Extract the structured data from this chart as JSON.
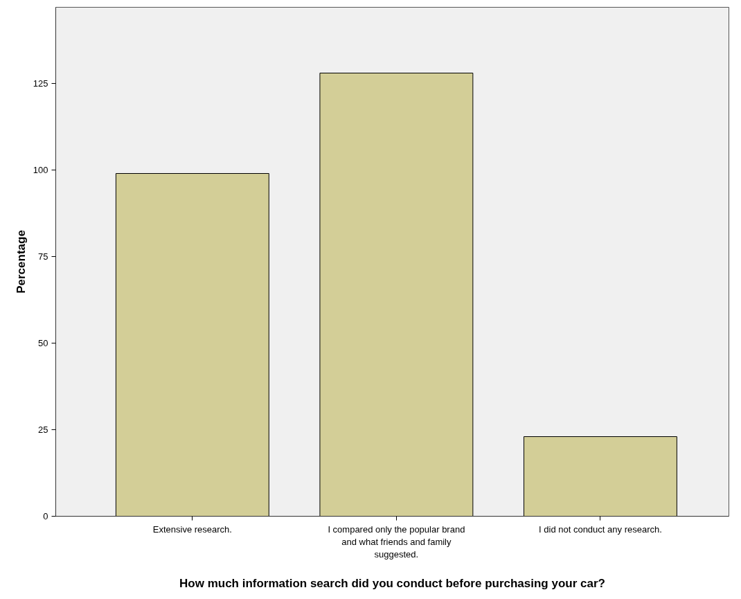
{
  "chart_data": {
    "type": "bar",
    "xlabel": "How much information search did you conduct before purchasing your car?",
    "ylabel": "Percentage",
    "categories": [
      "Extensive research.",
      "I compared only the popular brand and what friends and family suggested.",
      "I did not conduct any research."
    ],
    "values": [
      99,
      128,
      23
    ],
    "color": "#d3ce97",
    "ylim": [
      0,
      147
    ],
    "yticks": [
      0,
      25,
      50,
      75,
      100,
      125
    ],
    "grid": false
  }
}
